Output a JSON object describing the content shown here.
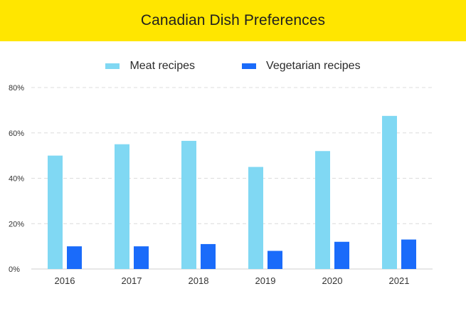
{
  "colors": {
    "header_bg": "#ffe600",
    "meat": "#80d8f3",
    "vegetarian": "#1a6bfa",
    "grid": "#dcdcdc",
    "axis_text": "#333333"
  },
  "chart_data": {
    "type": "bar",
    "title": "Canadian Dish Preferences",
    "xlabel": "",
    "ylabel": "",
    "categories": [
      "2016",
      "2017",
      "2018",
      "2019",
      "2020",
      "2021"
    ],
    "series": [
      {
        "name": "Meat recipes",
        "color": "#80d8f3",
        "values": [
          50,
          55,
          56.5,
          45,
          52,
          67.5
        ]
      },
      {
        "name": "Vegetarian recipes",
        "color": "#1a6bfa",
        "values": [
          10,
          10,
          11,
          8,
          12,
          13
        ]
      }
    ],
    "ylim": [
      0,
      80
    ],
    "yticks": [
      0,
      20,
      40,
      60,
      80
    ],
    "ytick_labels": [
      "0%",
      "20%",
      "40%",
      "60%",
      "80%"
    ],
    "grid": true,
    "legend": "top-center"
  }
}
